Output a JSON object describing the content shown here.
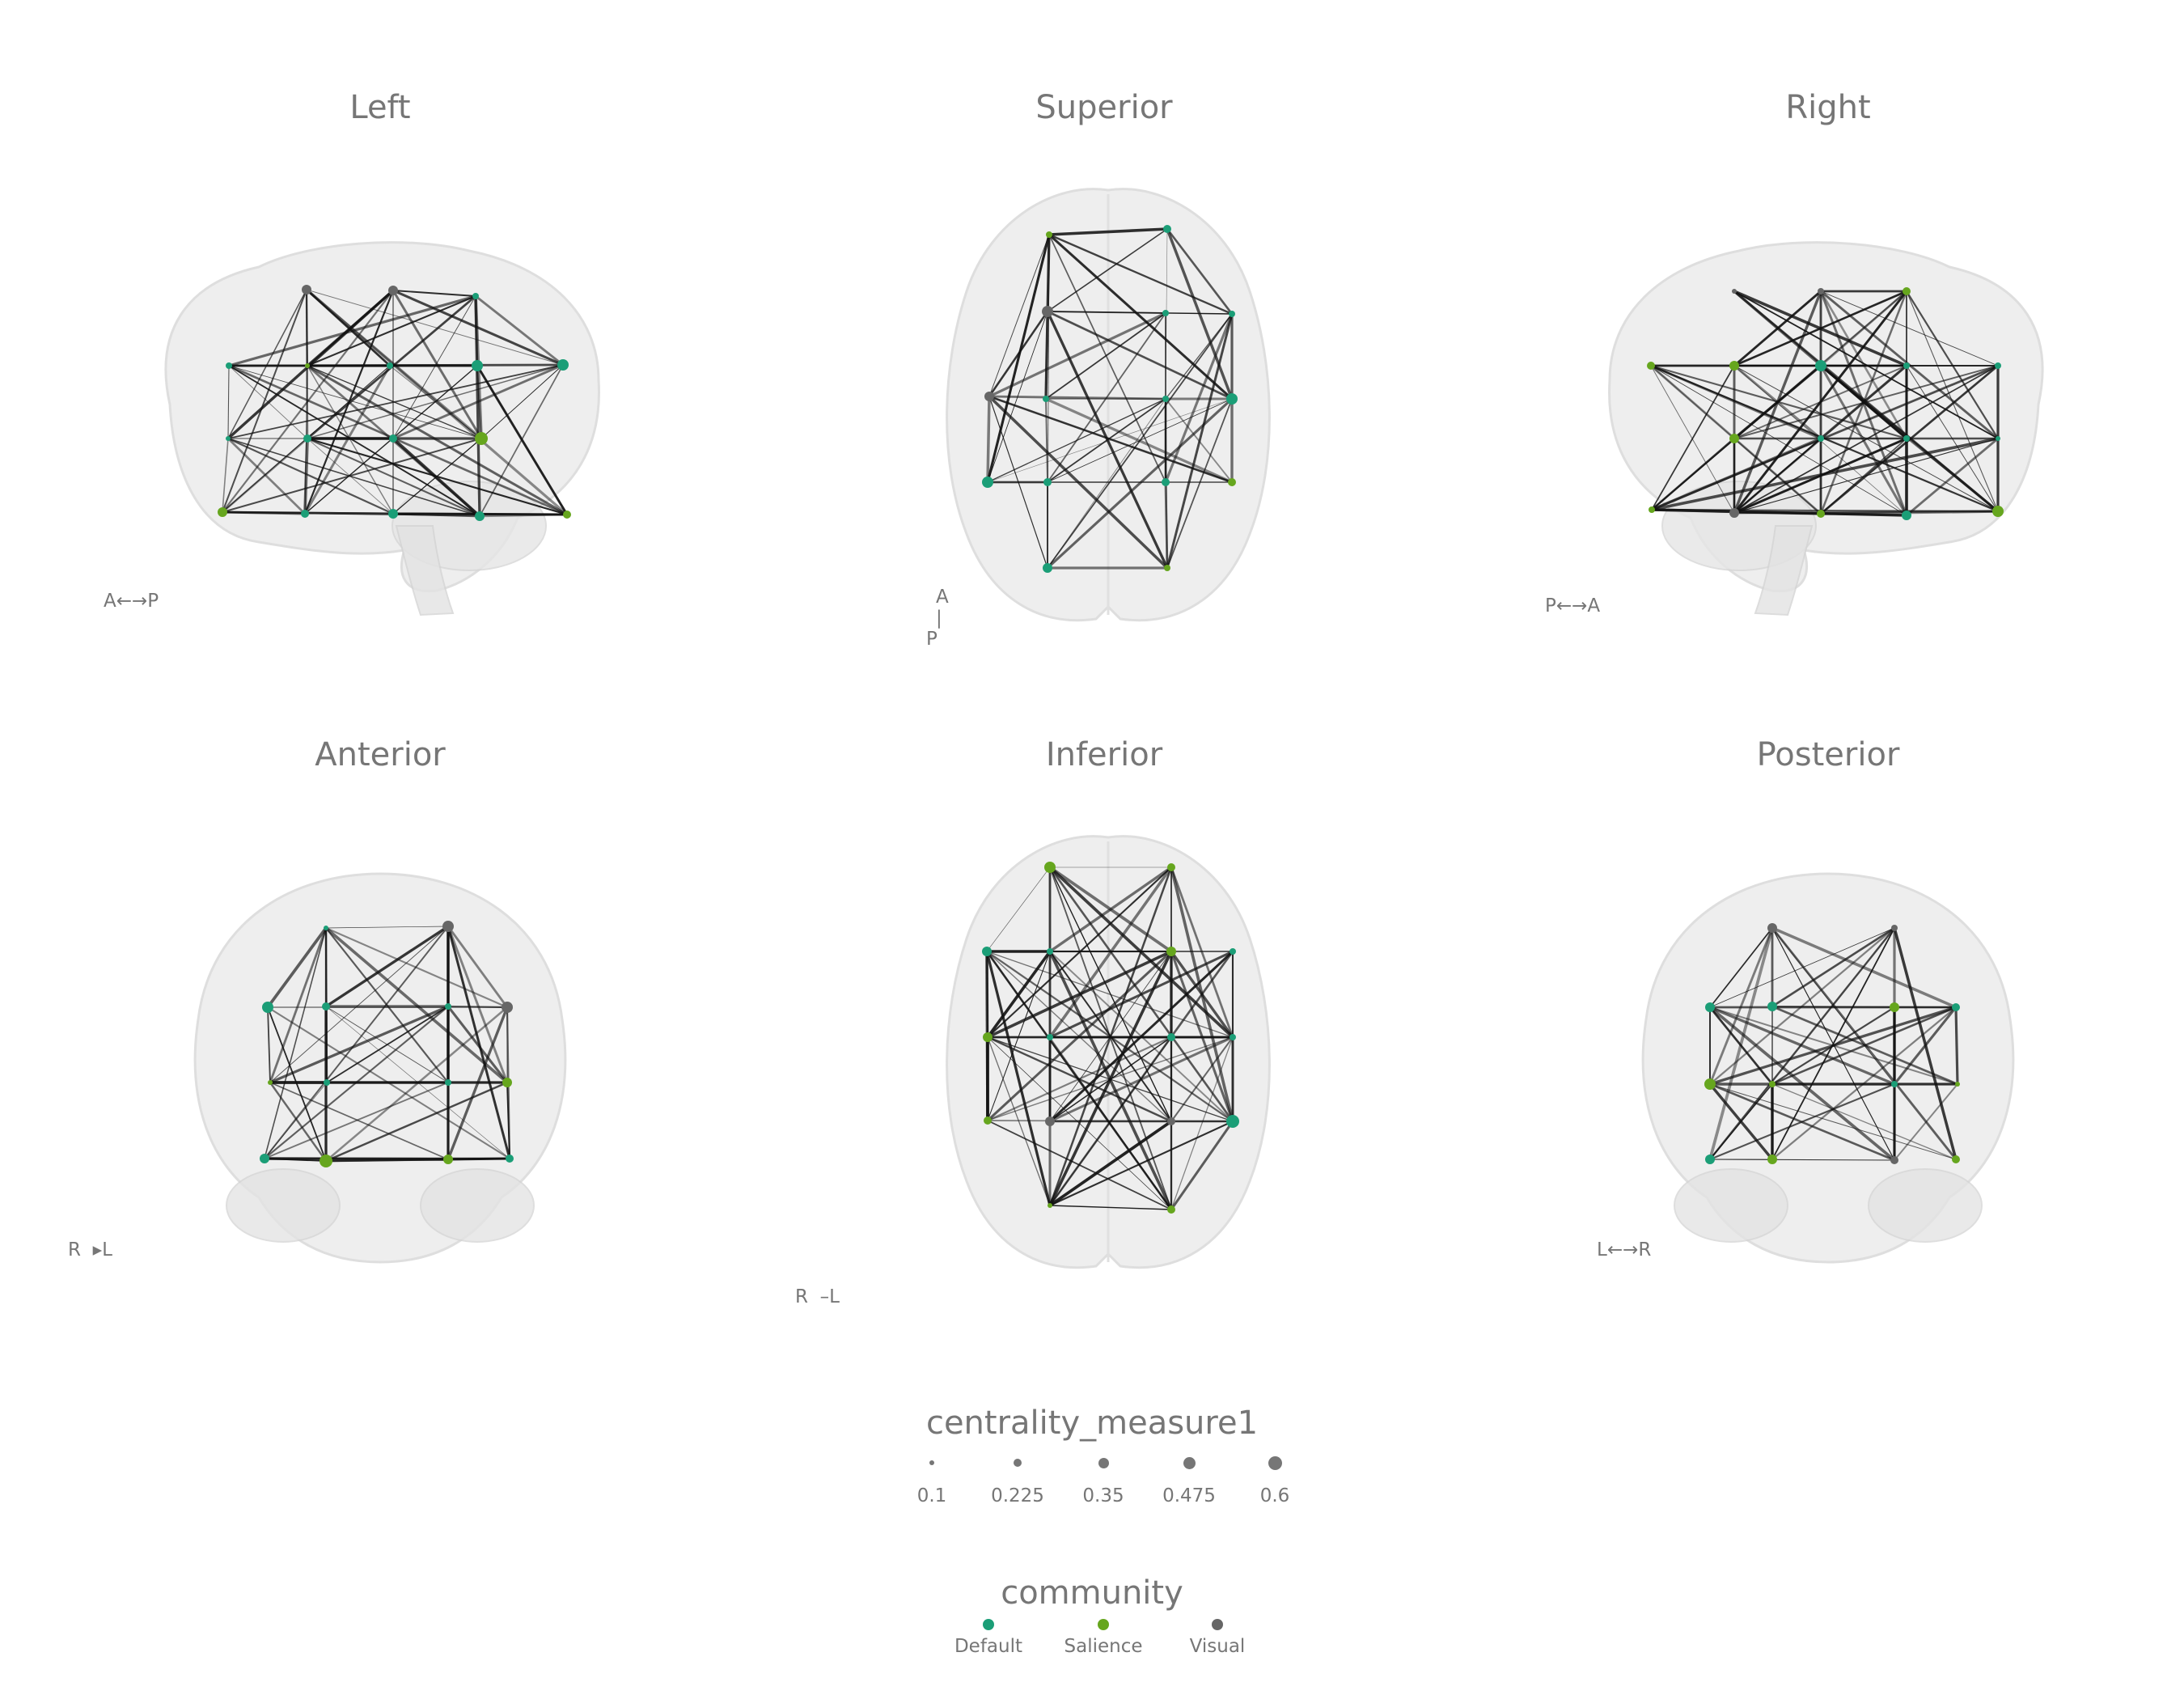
{
  "panels": [
    {
      "id": "left",
      "title": "Left",
      "orient_a": "A",
      "orient_b": "P"
    },
    {
      "id": "superior",
      "title": "Superior",
      "orient_a": "A",
      "orient_b": "P"
    },
    {
      "id": "right",
      "title": "Right",
      "orient_a": "P",
      "orient_b": "A"
    },
    {
      "id": "anterior",
      "title": "Anterior",
      "orient_a": "R",
      "orient_b": "L"
    },
    {
      "id": "inferior",
      "title": "Inferior",
      "orient_a": "R",
      "orient_b": "L"
    },
    {
      "id": "posterior",
      "title": "Posterior",
      "orient_a": "L",
      "orient_b": "R"
    }
  ],
  "legend": {
    "size_title": "centrality_measure1",
    "size_values": [
      "0.1",
      "0.225",
      "0.35",
      "0.475",
      "0.6"
    ],
    "community_title": "community",
    "communities": [
      {
        "name": "Default",
        "color": "#1b9e77"
      },
      {
        "name": "Salience",
        "color": "#66a61e"
      },
      {
        "name": "Visual",
        "color": "#666666"
      }
    ]
  }
}
